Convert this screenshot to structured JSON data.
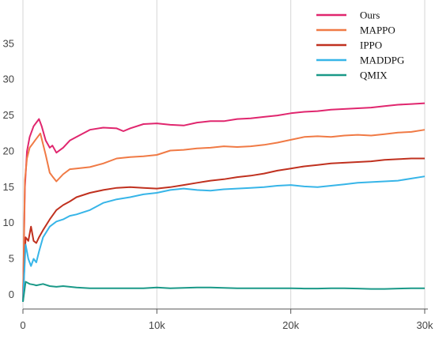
{
  "chart_data": {
    "type": "line",
    "title": "",
    "xlabel": "",
    "ylabel": "",
    "xlim": [
      0,
      30000
    ],
    "ylim": [
      -2,
      40
    ],
    "x_ticks": [
      0,
      10000,
      20000,
      30000
    ],
    "x_tick_labels": [
      "0",
      "10k",
      "20k",
      "30k"
    ],
    "y_ticks": [
      0,
      5,
      10,
      15,
      20,
      25,
      30,
      35
    ],
    "y_tick_labels": [
      "0",
      "5",
      "10",
      "15",
      "20",
      "25",
      "30",
      "35"
    ],
    "grid": "vertical",
    "legend_position": "top-right",
    "series": [
      {
        "name": "Ours",
        "color": "#e0266e",
        "points": [
          [
            0,
            -1
          ],
          [
            150,
            15
          ],
          [
            300,
            20
          ],
          [
            500,
            22
          ],
          [
            800,
            23.5
          ],
          [
            1000,
            24
          ],
          [
            1200,
            24.5
          ],
          [
            1400,
            23.5
          ],
          [
            1700,
            21.5
          ],
          [
            2000,
            20.5
          ],
          [
            2200,
            20.8
          ],
          [
            2500,
            19.8
          ],
          [
            3000,
            20.5
          ],
          [
            3500,
            21.5
          ],
          [
            4000,
            22
          ],
          [
            5000,
            23
          ],
          [
            6000,
            23.3
          ],
          [
            7000,
            23.2
          ],
          [
            7500,
            22.8
          ],
          [
            8000,
            23.2
          ],
          [
            9000,
            23.8
          ],
          [
            10000,
            23.9
          ],
          [
            11000,
            23.7
          ],
          [
            12000,
            23.6
          ],
          [
            13000,
            24
          ],
          [
            14000,
            24.2
          ],
          [
            15000,
            24.2
          ],
          [
            16000,
            24.5
          ],
          [
            17000,
            24.6
          ],
          [
            18000,
            24.8
          ],
          [
            19000,
            25
          ],
          [
            20000,
            25.3
          ],
          [
            21000,
            25.5
          ],
          [
            22000,
            25.6
          ],
          [
            23000,
            25.8
          ],
          [
            24000,
            25.9
          ],
          [
            25000,
            26
          ],
          [
            26000,
            26.1
          ],
          [
            27000,
            26.3
          ],
          [
            28000,
            26.5
          ],
          [
            29000,
            26.6
          ],
          [
            30000,
            26.7
          ]
        ]
      },
      {
        "name": "MAPPO",
        "color": "#f07a45",
        "points": [
          [
            0,
            -1
          ],
          [
            150,
            16
          ],
          [
            300,
            19
          ],
          [
            500,
            20.5
          ],
          [
            700,
            21
          ],
          [
            900,
            21.5
          ],
          [
            1100,
            22
          ],
          [
            1300,
            22.5
          ],
          [
            1500,
            21
          ],
          [
            1700,
            19.5
          ],
          [
            2000,
            17
          ],
          [
            2200,
            16.5
          ],
          [
            2500,
            15.8
          ],
          [
            3000,
            16.8
          ],
          [
            3500,
            17.5
          ],
          [
            4000,
            17.6
          ],
          [
            5000,
            17.8
          ],
          [
            6000,
            18.3
          ],
          [
            7000,
            19
          ],
          [
            8000,
            19.2
          ],
          [
            9000,
            19.3
          ],
          [
            10000,
            19.5
          ],
          [
            11000,
            20.1
          ],
          [
            12000,
            20.2
          ],
          [
            13000,
            20.4
          ],
          [
            14000,
            20.5
          ],
          [
            15000,
            20.7
          ],
          [
            16000,
            20.6
          ],
          [
            17000,
            20.7
          ],
          [
            18000,
            20.9
          ],
          [
            19000,
            21.2
          ],
          [
            20000,
            21.6
          ],
          [
            21000,
            22
          ],
          [
            22000,
            22.1
          ],
          [
            23000,
            22
          ],
          [
            24000,
            22.2
          ],
          [
            25000,
            22.3
          ],
          [
            26000,
            22.2
          ],
          [
            27000,
            22.4
          ],
          [
            28000,
            22.6
          ],
          [
            29000,
            22.7
          ],
          [
            30000,
            23
          ]
        ]
      },
      {
        "name": "IPPO",
        "color": "#c0311f",
        "points": [
          [
            0,
            -1
          ],
          [
            200,
            8
          ],
          [
            400,
            7.5
          ],
          [
            600,
            9.5
          ],
          [
            800,
            7.5
          ],
          [
            1000,
            7.2
          ],
          [
            1200,
            8
          ],
          [
            1500,
            9
          ],
          [
            2000,
            10.5
          ],
          [
            2500,
            11.8
          ],
          [
            3000,
            12.5
          ],
          [
            3500,
            13
          ],
          [
            4000,
            13.6
          ],
          [
            5000,
            14.2
          ],
          [
            6000,
            14.6
          ],
          [
            7000,
            14.9
          ],
          [
            8000,
            15
          ],
          [
            9000,
            14.9
          ],
          [
            10000,
            14.8
          ],
          [
            11000,
            15
          ],
          [
            12000,
            15.3
          ],
          [
            13000,
            15.6
          ],
          [
            14000,
            15.9
          ],
          [
            15000,
            16.1
          ],
          [
            16000,
            16.4
          ],
          [
            17000,
            16.6
          ],
          [
            18000,
            16.9
          ],
          [
            19000,
            17.3
          ],
          [
            20000,
            17.6
          ],
          [
            21000,
            17.9
          ],
          [
            22000,
            18.1
          ],
          [
            23000,
            18.3
          ],
          [
            24000,
            18.4
          ],
          [
            25000,
            18.5
          ],
          [
            26000,
            18.6
          ],
          [
            27000,
            18.8
          ],
          [
            28000,
            18.9
          ],
          [
            29000,
            19
          ],
          [
            30000,
            19
          ]
        ]
      },
      {
        "name": "MADDPG",
        "color": "#37b5e8",
        "points": [
          [
            0,
            -1
          ],
          [
            200,
            7
          ],
          [
            400,
            5
          ],
          [
            600,
            4
          ],
          [
            800,
            5
          ],
          [
            1000,
            4.5
          ],
          [
            1200,
            6
          ],
          [
            1500,
            8
          ],
          [
            2000,
            9.5
          ],
          [
            2500,
            10.2
          ],
          [
            3000,
            10.5
          ],
          [
            3500,
            11
          ],
          [
            4000,
            11.2
          ],
          [
            5000,
            11.8
          ],
          [
            6000,
            12.8
          ],
          [
            7000,
            13.3
          ],
          [
            8000,
            13.6
          ],
          [
            9000,
            14
          ],
          [
            10000,
            14.2
          ],
          [
            11000,
            14.6
          ],
          [
            12000,
            14.8
          ],
          [
            13000,
            14.6
          ],
          [
            14000,
            14.5
          ],
          [
            15000,
            14.7
          ],
          [
            16000,
            14.8
          ],
          [
            17000,
            14.9
          ],
          [
            18000,
            15
          ],
          [
            19000,
            15.2
          ],
          [
            20000,
            15.3
          ],
          [
            21000,
            15.1
          ],
          [
            22000,
            15
          ],
          [
            23000,
            15.2
          ],
          [
            24000,
            15.4
          ],
          [
            25000,
            15.6
          ],
          [
            26000,
            15.7
          ],
          [
            27000,
            15.8
          ],
          [
            28000,
            15.9
          ],
          [
            29000,
            16.2
          ],
          [
            30000,
            16.5
          ]
        ]
      },
      {
        "name": "QMIX",
        "color": "#1a9988",
        "points": [
          [
            0,
            -1
          ],
          [
            200,
            1.8
          ],
          [
            500,
            1.5
          ],
          [
            800,
            1.4
          ],
          [
            1000,
            1.3
          ],
          [
            1500,
            1.5
          ],
          [
            2000,
            1.2
          ],
          [
            2500,
            1.1
          ],
          [
            3000,
            1.2
          ],
          [
            4000,
            1
          ],
          [
            5000,
            0.9
          ],
          [
            6000,
            0.9
          ],
          [
            7000,
            0.9
          ],
          [
            8000,
            0.9
          ],
          [
            9000,
            0.9
          ],
          [
            10000,
            1
          ],
          [
            11000,
            0.9
          ],
          [
            12000,
            0.95
          ],
          [
            13000,
            1
          ],
          [
            14000,
            1
          ],
          [
            15000,
            0.95
          ],
          [
            16000,
            0.9
          ],
          [
            17000,
            0.9
          ],
          [
            18000,
            0.9
          ],
          [
            19000,
            0.9
          ],
          [
            20000,
            0.9
          ],
          [
            21000,
            0.85
          ],
          [
            22000,
            0.85
          ],
          [
            23000,
            0.9
          ],
          [
            24000,
            0.9
          ],
          [
            25000,
            0.85
          ],
          [
            26000,
            0.8
          ],
          [
            27000,
            0.8
          ],
          [
            28000,
            0.85
          ],
          [
            29000,
            0.9
          ],
          [
            30000,
            0.9
          ]
        ]
      }
    ]
  }
}
